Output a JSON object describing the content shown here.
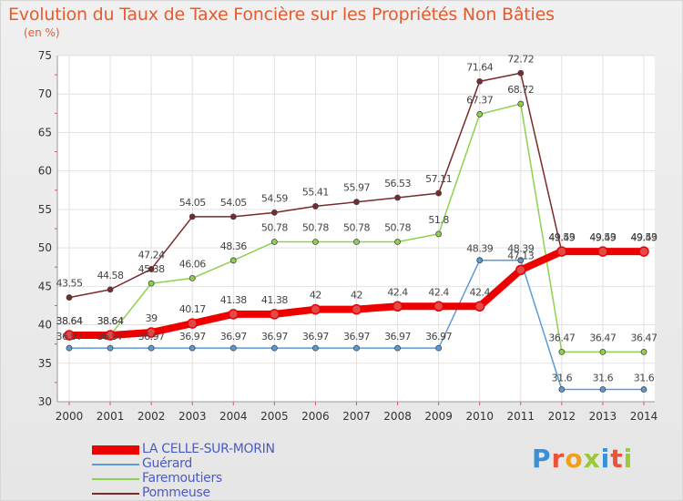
{
  "title": "Evolution du Taux de Taxe Foncière sur les Propriétés Non Bâties",
  "unit": "(en %)",
  "brand": {
    "text": "Proxiti",
    "colors": [
      "#3a8fd9",
      "#e8533a",
      "#f0a020",
      "#9bc93a",
      "#3a8fd9",
      "#e8533a",
      "#9bc93a"
    ]
  },
  "chart_data": {
    "type": "line",
    "title": "Evolution du Taux de Taxe Foncière sur les Propriétés Non Bâties",
    "ylabel": "(en %)",
    "xlabel": "",
    "x": [
      "2000",
      "2001",
      "2002",
      "2003",
      "2004",
      "2005",
      "2006",
      "2007",
      "2008",
      "2009",
      "2010",
      "2011",
      "2012",
      "2013",
      "2014"
    ],
    "ylim": [
      30,
      75
    ],
    "yticks": [
      30,
      35,
      40,
      45,
      50,
      55,
      60,
      65,
      70,
      75
    ],
    "grid": true,
    "legend": "bottom-left",
    "series": [
      {
        "name": "LA CELLE-SUR-MORIN",
        "color": "#ee0000",
        "width": "thick",
        "values": [
          38.64,
          38.64,
          39,
          40.17,
          41.38,
          41.38,
          42,
          42,
          42.4,
          42.4,
          42.4,
          47.13,
          49.53,
          49.53,
          49.53
        ],
        "labels": [
          "38.64",
          "38.64",
          "39",
          "40.17",
          "41.38",
          "41.38",
          "42",
          "42",
          "42.4",
          "42.4",
          "42.4",
          "47.13",
          "49.53",
          "49.53",
          "49.53"
        ]
      },
      {
        "name": "Guérard",
        "color": "#5b9bd5",
        "width": "thin",
        "values": [
          36.97,
          36.97,
          36.97,
          36.97,
          36.97,
          36.97,
          36.97,
          36.97,
          36.97,
          36.97,
          48.39,
          48.39,
          31.6,
          31.6,
          31.6
        ],
        "labels": [
          "36.97",
          "36.97",
          "36.97",
          "36.97",
          "36.97",
          "36.97",
          "36.97",
          "36.97",
          "36.97",
          "36.97",
          "48.39",
          "48.39",
          "31.6",
          "31.6",
          "31.6"
        ]
      },
      {
        "name": "Faremoutiers",
        "color": "#8fd14f",
        "width": "thin",
        "values": [
          38.64,
          38.64,
          45.38,
          46.06,
          48.36,
          50.78,
          50.78,
          50.78,
          50.78,
          51.8,
          67.37,
          68.72,
          36.47,
          36.47,
          36.47
        ],
        "labels": [
          "38.64",
          "38.64",
          "45.38",
          "46.06",
          "48.36",
          "50.78",
          "50.78",
          "50.78",
          "50.78",
          "51.8",
          "67.37",
          "68.72",
          "36.47",
          "36.47",
          "36.47"
        ]
      },
      {
        "name": "Pommeuse",
        "color": "#7a2a2a",
        "width": "thin",
        "values": [
          43.55,
          44.58,
          47.24,
          54.05,
          54.05,
          54.59,
          55.41,
          55.97,
          56.53,
          57.11,
          71.64,
          72.72,
          49.49,
          49.49,
          49.49
        ],
        "labels": [
          "43.55",
          "44.58",
          "47.24",
          "54.05",
          "54.05",
          "54.59",
          "55.41",
          "55.97",
          "56.53",
          "57.11",
          "71.64",
          "72.72",
          "49.49",
          "49.49",
          "49.49"
        ]
      }
    ]
  }
}
